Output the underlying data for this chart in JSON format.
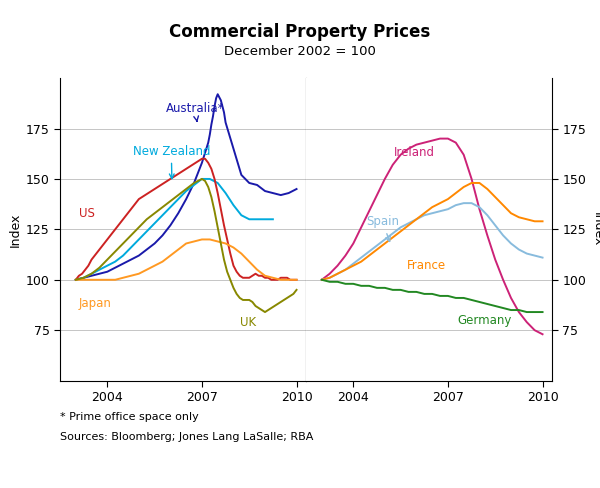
{
  "title": "Commercial Property Prices",
  "subtitle": "December 2002 = 100",
  "ylabel_left": "Index",
  "ylabel_right": "Index",
  "ylim": [
    50,
    200
  ],
  "yticks": [
    75,
    100,
    125,
    150,
    175
  ],
  "footnote1": "* Prime office space only",
  "footnote2": "Sources: Bloomberg; Jones Lang LaSalle; RBA",
  "left_panel": {
    "xlim": [
      2002.5,
      2010.3
    ],
    "series": {
      "Australia": {
        "color": "#1a1aaa",
        "x": [
          2003.0,
          2003.25,
          2003.5,
          2003.75,
          2004.0,
          2004.25,
          2004.5,
          2004.75,
          2005.0,
          2005.25,
          2005.5,
          2005.75,
          2006.0,
          2006.25,
          2006.5,
          2006.75,
          2007.0,
          2007.1,
          2007.2,
          2007.25,
          2007.3,
          2007.35,
          2007.4,
          2007.45,
          2007.5,
          2007.6,
          2007.7,
          2007.75,
          2008.0,
          2008.25,
          2008.5,
          2008.75,
          2009.0,
          2009.25,
          2009.5,
          2009.75,
          2010.0
        ],
        "y": [
          100,
          101,
          102,
          103,
          104,
          106,
          108,
          110,
          112,
          115,
          118,
          122,
          127,
          133,
          140,
          148,
          158,
          163,
          168,
          172,
          177,
          181,
          186,
          190,
          192,
          189,
          183,
          178,
          165,
          152,
          148,
          147,
          144,
          143,
          142,
          143,
          145
        ]
      },
      "NewZealand": {
        "color": "#00aadd",
        "x": [
          2003.0,
          2003.25,
          2003.5,
          2003.75,
          2004.0,
          2004.25,
          2004.5,
          2004.75,
          2005.0,
          2005.25,
          2005.5,
          2005.75,
          2006.0,
          2006.25,
          2006.5,
          2006.75,
          2007.0,
          2007.25,
          2007.5,
          2007.75,
          2008.0,
          2008.25,
          2008.5,
          2008.75,
          2009.0,
          2009.25
        ],
        "y": [
          100,
          101,
          103,
          105,
          107,
          109,
          112,
          116,
          120,
          124,
          128,
          132,
          136,
          140,
          144,
          147,
          150,
          150,
          148,
          143,
          137,
          132,
          130,
          130,
          130,
          130
        ]
      },
      "US": {
        "color": "#cc2222",
        "x": [
          2003.0,
          2003.1,
          2003.2,
          2003.3,
          2003.4,
          2003.5,
          2003.6,
          2003.7,
          2003.8,
          2003.9,
          2004.0,
          2004.1,
          2004.2,
          2004.3,
          2004.4,
          2004.5,
          2004.6,
          2004.7,
          2004.8,
          2004.9,
          2005.0,
          2005.1,
          2005.2,
          2005.3,
          2005.4,
          2005.5,
          2005.6,
          2005.7,
          2005.8,
          2005.9,
          2006.0,
          2006.1,
          2006.2,
          2006.3,
          2006.4,
          2006.5,
          2006.6,
          2006.7,
          2006.8,
          2006.9,
          2007.0,
          2007.1,
          2007.2,
          2007.3,
          2007.4,
          2007.5,
          2007.6,
          2007.7,
          2007.8,
          2007.9,
          2008.0,
          2008.1,
          2008.2,
          2008.3,
          2008.4,
          2008.5,
          2008.6,
          2008.7,
          2008.8,
          2008.9,
          2009.0,
          2009.1,
          2009.2,
          2009.3,
          2009.4,
          2009.5,
          2009.6,
          2009.7,
          2009.8,
          2009.9,
          2010.0
        ],
        "y": [
          100,
          102,
          103,
          105,
          107,
          110,
          112,
          114,
          116,
          118,
          120,
          122,
          124,
          126,
          128,
          130,
          132,
          134,
          136,
          138,
          140,
          141,
          142,
          143,
          144,
          145,
          146,
          147,
          148,
          149,
          150,
          151,
          152,
          153,
          154,
          155,
          156,
          157,
          158,
          159,
          160,
          160,
          158,
          155,
          150,
          143,
          135,
          127,
          120,
          113,
          107,
          104,
          102,
          101,
          101,
          101,
          102,
          103,
          102,
          102,
          101,
          101,
          100,
          100,
          100,
          101,
          101,
          101,
          100,
          100,
          100
        ]
      },
      "Japan": {
        "color": "#ff9922",
        "x": [
          2003.0,
          2003.25,
          2003.5,
          2003.75,
          2004.0,
          2004.25,
          2004.5,
          2004.75,
          2005.0,
          2005.25,
          2005.5,
          2005.75,
          2006.0,
          2006.25,
          2006.5,
          2006.75,
          2007.0,
          2007.25,
          2007.5,
          2007.75,
          2008.0,
          2008.25,
          2008.5,
          2008.75,
          2009.0,
          2009.25,
          2009.5,
          2009.75,
          2010.0
        ],
        "y": [
          100,
          100,
          100,
          100,
          100,
          100,
          101,
          102,
          103,
          105,
          107,
          109,
          112,
          115,
          118,
          119,
          120,
          120,
          119,
          118,
          116,
          113,
          109,
          105,
          102,
          101,
          100,
          100,
          100
        ]
      },
      "UK": {
        "color": "#888800",
        "x": [
          2003.0,
          2003.25,
          2003.5,
          2003.75,
          2004.0,
          2004.25,
          2004.5,
          2004.75,
          2005.0,
          2005.25,
          2005.5,
          2005.75,
          2006.0,
          2006.25,
          2006.5,
          2006.75,
          2007.0,
          2007.1,
          2007.2,
          2007.3,
          2007.4,
          2007.5,
          2007.6,
          2007.7,
          2007.8,
          2007.9,
          2008.0,
          2008.1,
          2008.2,
          2008.3,
          2008.4,
          2008.5,
          2008.6,
          2008.7,
          2008.8,
          2008.9,
          2009.0,
          2009.1,
          2009.2,
          2009.3,
          2009.4,
          2009.5,
          2009.6,
          2009.7,
          2009.8,
          2009.9,
          2010.0
        ],
        "y": [
          100,
          101,
          103,
          106,
          110,
          114,
          118,
          122,
          126,
          130,
          133,
          136,
          139,
          142,
          145,
          148,
          150,
          149,
          146,
          141,
          134,
          126,
          118,
          110,
          104,
          100,
          96,
          93,
          91,
          90,
          90,
          90,
          89,
          87,
          86,
          85,
          84,
          85,
          86,
          87,
          88,
          89,
          90,
          91,
          92,
          93,
          95
        ]
      }
    }
  },
  "right_panel": {
    "xlim": [
      2002.5,
      2010.3
    ],
    "series": {
      "Ireland": {
        "color": "#cc2277",
        "x": [
          2003.0,
          2003.25,
          2003.5,
          2003.75,
          2004.0,
          2004.25,
          2004.5,
          2004.75,
          2005.0,
          2005.25,
          2005.5,
          2005.75,
          2006.0,
          2006.25,
          2006.5,
          2006.75,
          2007.0,
          2007.25,
          2007.5,
          2007.75,
          2008.0,
          2008.25,
          2008.5,
          2008.75,
          2009.0,
          2009.25,
          2009.5,
          2009.75,
          2010.0
        ],
        "y": [
          100,
          103,
          107,
          112,
          118,
          126,
          134,
          142,
          150,
          157,
          162,
          165,
          167,
          168,
          169,
          170,
          170,
          168,
          162,
          150,
          135,
          122,
          110,
          100,
          91,
          84,
          79,
          75,
          73
        ]
      },
      "Spain": {
        "color": "#88bbdd",
        "x": [
          2003.0,
          2003.25,
          2003.5,
          2003.75,
          2004.0,
          2004.25,
          2004.5,
          2004.75,
          2005.0,
          2005.25,
          2005.5,
          2005.75,
          2006.0,
          2006.25,
          2006.5,
          2006.75,
          2007.0,
          2007.25,
          2007.5,
          2007.75,
          2008.0,
          2008.25,
          2008.5,
          2008.75,
          2009.0,
          2009.25,
          2009.5,
          2009.75,
          2010.0
        ],
        "y": [
          100,
          101,
          103,
          105,
          108,
          111,
          114,
          117,
          120,
          123,
          126,
          128,
          130,
          132,
          133,
          134,
          135,
          137,
          138,
          138,
          136,
          132,
          127,
          122,
          118,
          115,
          113,
          112,
          111
        ]
      },
      "France": {
        "color": "#ff8800",
        "x": [
          2003.0,
          2003.25,
          2003.5,
          2003.75,
          2004.0,
          2004.25,
          2004.5,
          2004.75,
          2005.0,
          2005.25,
          2005.5,
          2005.75,
          2006.0,
          2006.25,
          2006.5,
          2006.75,
          2007.0,
          2007.25,
          2007.5,
          2007.75,
          2008.0,
          2008.25,
          2008.5,
          2008.75,
          2009.0,
          2009.25,
          2009.5,
          2009.75,
          2010.0
        ],
        "y": [
          100,
          101,
          103,
          105,
          107,
          109,
          112,
          115,
          118,
          121,
          124,
          127,
          130,
          133,
          136,
          138,
          140,
          143,
          146,
          148,
          148,
          145,
          141,
          137,
          133,
          131,
          130,
          129,
          129
        ]
      },
      "Germany": {
        "color": "#228822",
        "x": [
          2003.0,
          2003.25,
          2003.5,
          2003.75,
          2004.0,
          2004.25,
          2004.5,
          2004.75,
          2005.0,
          2005.25,
          2005.5,
          2005.75,
          2006.0,
          2006.25,
          2006.5,
          2006.75,
          2007.0,
          2007.25,
          2007.5,
          2007.75,
          2008.0,
          2008.25,
          2008.5,
          2008.75,
          2009.0,
          2009.25,
          2009.5,
          2009.75,
          2010.0
        ],
        "y": [
          100,
          99,
          99,
          98,
          98,
          97,
          97,
          96,
          96,
          95,
          95,
          94,
          94,
          93,
          93,
          92,
          92,
          91,
          91,
          90,
          89,
          88,
          87,
          86,
          85,
          85,
          84,
          84,
          84
        ]
      }
    }
  }
}
